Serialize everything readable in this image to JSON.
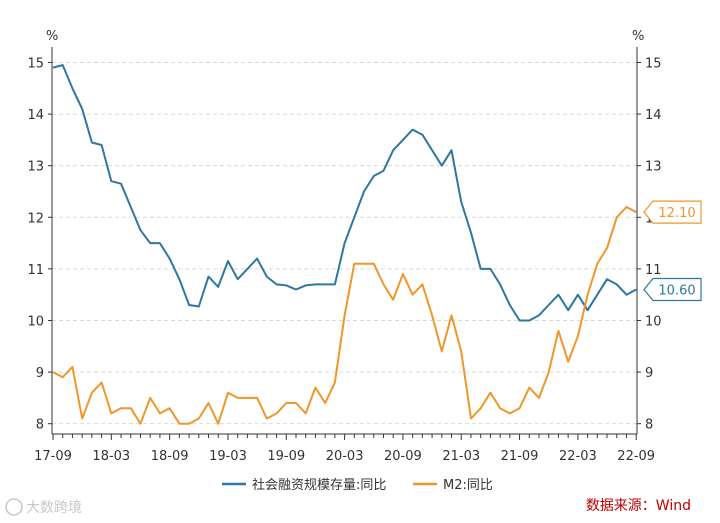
{
  "chart_data": {
    "type": "line",
    "left_unit": "%",
    "right_unit": "%",
    "ylim": [
      7.8,
      15.3
    ],
    "yticks": [
      8,
      9,
      10,
      11,
      12,
      13,
      14,
      15
    ],
    "x_tick_labels": [
      "17-09",
      "18-03",
      "18-09",
      "19-03",
      "19-09",
      "20-03",
      "20-09",
      "21-03",
      "21-09",
      "22-03",
      "22-09"
    ],
    "x_start": "2017-09",
    "grid": "horizontal dashed",
    "legend_position": "bottom",
    "series": [
      {
        "name": "社会融资规模存量:同比",
        "color": "#2e77a0",
        "end_label": "10.60",
        "values": [
          14.9,
          14.95,
          14.5,
          14.1,
          13.45,
          13.4,
          12.7,
          12.65,
          12.2,
          11.75,
          11.5,
          11.5,
          11.2,
          10.8,
          10.3,
          10.27,
          10.85,
          10.65,
          11.15,
          10.8,
          11.0,
          11.2,
          10.85,
          10.7,
          10.68,
          10.6,
          10.68,
          10.7,
          10.7,
          10.7,
          11.5,
          12.0,
          12.5,
          12.8,
          12.9,
          13.3,
          13.5,
          13.7,
          13.6,
          13.3,
          13.0,
          13.3,
          12.3,
          11.7,
          11.0,
          11.0,
          10.7,
          10.3,
          10.0,
          10.0,
          10.1,
          10.3,
          10.5,
          10.2,
          10.5,
          10.2,
          10.5,
          10.8,
          10.7,
          10.5,
          10.6
        ]
      },
      {
        "name": "M2:同比",
        "color": "#f0962a",
        "end_label": "12.10",
        "values": [
          9.0,
          8.9,
          9.1,
          8.1,
          8.6,
          8.8,
          8.2,
          8.3,
          8.3,
          8.0,
          8.5,
          8.2,
          8.3,
          8.0,
          8.0,
          8.1,
          8.4,
          8.0,
          8.6,
          8.5,
          8.5,
          8.5,
          8.1,
          8.2,
          8.4,
          8.4,
          8.2,
          8.7,
          8.4,
          8.8,
          10.1,
          11.1,
          11.1,
          11.1,
          10.7,
          10.4,
          10.9,
          10.5,
          10.7,
          10.1,
          9.4,
          10.1,
          9.4,
          8.1,
          8.3,
          8.6,
          8.3,
          8.2,
          8.3,
          8.7,
          8.5,
          9.0,
          9.8,
          9.2,
          9.7,
          10.5,
          11.1,
          11.4,
          12.0,
          12.2,
          12.1
        ]
      }
    ]
  },
  "source_text": "数据来源：Wind",
  "watermark_text": "大数跨境"
}
